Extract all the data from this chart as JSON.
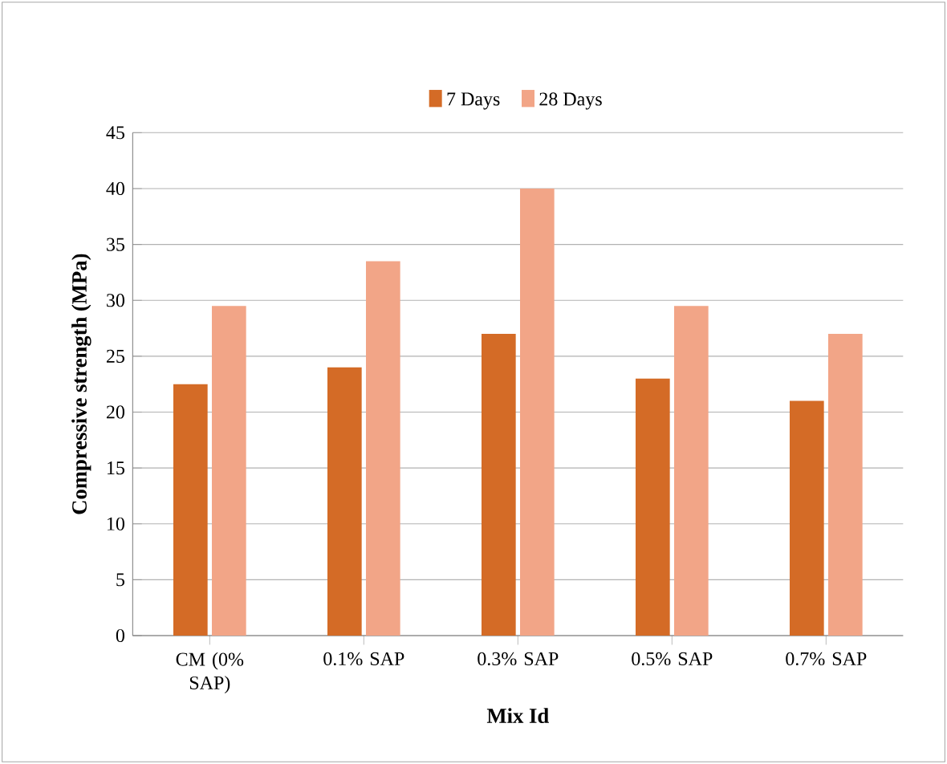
{
  "chart_data": {
    "type": "bar",
    "xlabel": "Mix Id",
    "ylabel": "Compressive strength (MPa)",
    "categories": [
      "CM (0% SAP)",
      "0.1% SAP",
      "0.3% SAP",
      "0.5% SAP",
      "0.7% SAP"
    ],
    "series": [
      {
        "name": "7 Days",
        "color": "#d46b26",
        "values": [
          22.5,
          24,
          27,
          23,
          21
        ]
      },
      {
        "name": "28 Days",
        "color": "#f2a587",
        "values": [
          29.5,
          33.5,
          40,
          29.5,
          27
        ]
      }
    ],
    "ylim": [
      0,
      45
    ],
    "yticks": [
      0,
      5,
      10,
      15,
      20,
      25,
      30,
      35,
      40,
      45
    ],
    "grid": "y",
    "legend": "top"
  }
}
